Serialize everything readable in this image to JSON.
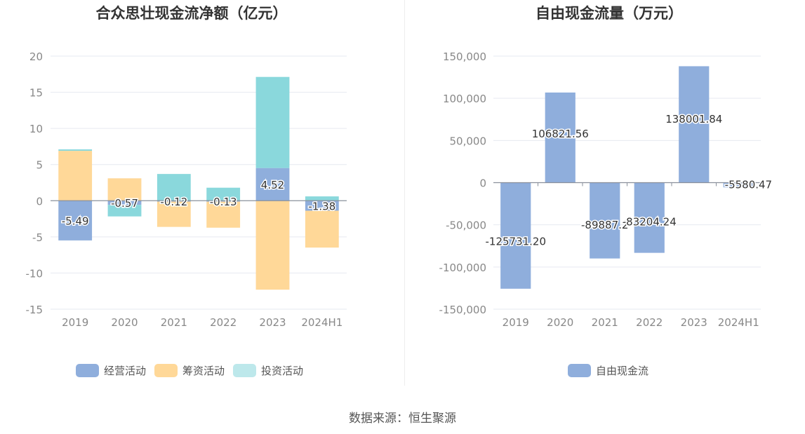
{
  "source_label": "数据来源：恒生聚源",
  "colors": {
    "operating": "#8FAEDC",
    "financing": "#FFD898",
    "investing": "#8AD8DC",
    "investing_legend": "#BDE8EB",
    "free_cash_flow": "#8FAEDC",
    "grid": "#E6E9F0",
    "axis": "#8A909C",
    "tick_text": "#888888",
    "title": "#333333"
  },
  "chart_data": [
    {
      "type": "bar",
      "stacked": true,
      "title": "合众思壮现金流净额（亿元）",
      "xlabel": "",
      "ylabel": "",
      "categories": [
        "2019",
        "2020",
        "2021",
        "2022",
        "2023",
        "2024H1"
      ],
      "ylim": [
        -15,
        20
      ],
      "yticks": [
        20,
        15,
        10,
        5,
        0,
        -5,
        -10,
        -15
      ],
      "ytick_labels": [
        "20",
        "15",
        "10",
        "5",
        "0",
        "-5",
        "-10",
        "-15"
      ],
      "grid": true,
      "legend_position": "bottom",
      "series": [
        {
          "name": "经营活动",
          "color_key": "operating",
          "values": [
            -5.49,
            -0.57,
            -0.12,
            -0.13,
            4.52,
            -1.38
          ],
          "labels": [
            "-5.49",
            "-0.57",
            "-0.12",
            "-0.13",
            "4.52",
            "-1.38"
          ]
        },
        {
          "name": "筹资活动",
          "color_key": "financing",
          "values": [
            6.9,
            3.1,
            -3.5,
            -3.6,
            -12.3,
            -5.1
          ]
        },
        {
          "name": "投资活动",
          "color_key": "investing",
          "values": [
            0.2,
            -1.6,
            3.7,
            1.8,
            12.6,
            0.6
          ]
        }
      ]
    },
    {
      "type": "bar",
      "title": "自由现金流量（万元）",
      "xlabel": "",
      "ylabel": "",
      "categories": [
        "2019",
        "2020",
        "2021",
        "2022",
        "2023",
        "2024H1"
      ],
      "ylim": [
        -150000,
        150000
      ],
      "yticks": [
        150000,
        100000,
        50000,
        0,
        -50000,
        -100000,
        -150000
      ],
      "ytick_labels": [
        "150,000",
        "100,000",
        "50,000",
        "0",
        "-50,000",
        "-100,000",
        "-150,000"
      ],
      "grid": true,
      "legend_position": "bottom",
      "series": [
        {
          "name": "自由现金流",
          "color_key": "free_cash_flow",
          "values": [
            -125731.2,
            106821.56,
            -89887.2,
            -83204.24,
            138001.84,
            -5580.47
          ],
          "labels": [
            "-125731.20",
            "106821.56",
            "-89887.2",
            "-83204.24",
            "138001.84",
            "-5580.47"
          ]
        }
      ]
    }
  ]
}
